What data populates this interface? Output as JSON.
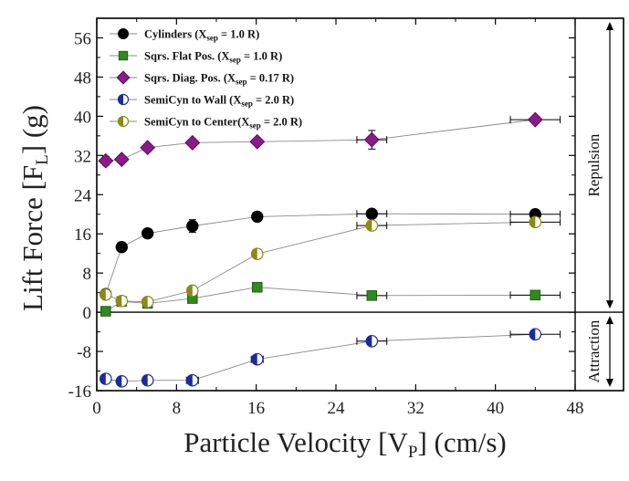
{
  "chart_data": {
    "type": "scatter",
    "xlabel": {
      "main": "Particle Velocity [V",
      "sub": "P",
      "tail": "] (cm/s)"
    },
    "ylabel": {
      "main": "Lift Force [F",
      "sub": "L",
      "tail": "] (g)"
    },
    "xlim": [
      0,
      48
    ],
    "ylim": [
      -16,
      60
    ],
    "x_ticks": [
      0,
      8,
      16,
      24,
      32,
      40,
      48
    ],
    "x_tick_labels": [
      "0",
      "8",
      "16",
      "24",
      "32",
      "40",
      "48"
    ],
    "y_ticks": [
      -16,
      -8,
      0,
      8,
      16,
      24,
      32,
      40,
      48,
      56
    ],
    "y_tick_labels": [
      "-16",
      "-8",
      "0",
      "8",
      "16",
      "24",
      "32",
      "40",
      "48",
      "56"
    ],
    "zero_line": 0,
    "grid": false,
    "legend_position": "top-left",
    "regions": [
      {
        "label": "Repulsion",
        "from": 0,
        "to": 60
      },
      {
        "label": "Attraction",
        "from": -16,
        "to": 0
      }
    ],
    "series": [
      {
        "name": "Cylinders (X",
        "name_sub": "sep",
        "name_tail": " = 1.0 R)",
        "marker": "circle-filled",
        "color": "#000000",
        "x": [
          0.9,
          2.5,
          5.1,
          9.6,
          16.1,
          27.6,
          44.0
        ],
        "y": [
          3.7,
          13.3,
          16.1,
          17.6,
          19.5,
          20.1,
          20.0
        ],
        "y_err": [
          0,
          0.6,
          0,
          1.3,
          0.5,
          0,
          0
        ],
        "x_err": [
          0,
          0,
          0,
          0,
          0,
          1.5,
          2.5
        ]
      },
      {
        "name": "Sqrs. Flat Pos. (X",
        "name_sub": "sep",
        "name_tail": " = 1.0 R)",
        "marker": "square",
        "color": "#2e8b1e",
        "x": [
          0.9,
          2.5,
          5.1,
          9.6,
          16.1,
          27.6,
          44.0
        ],
        "y": [
          0.2,
          2.2,
          1.8,
          2.8,
          5.1,
          3.4,
          3.5
        ],
        "y_err": [
          0,
          0,
          0,
          0,
          0.3,
          0,
          0
        ],
        "x_err": [
          0,
          0,
          0,
          0,
          0,
          1.5,
          2.5
        ]
      },
      {
        "name": "Sqrs. Diag. Pos. (X",
        "name_sub": "sep",
        "name_tail": " = 0.17 R)",
        "marker": "diamond",
        "color": "#8b1a8b",
        "x": [
          0.9,
          2.5,
          5.1,
          9.6,
          16.1,
          27.6,
          44.0
        ],
        "y": [
          30.9,
          31.2,
          33.6,
          34.6,
          34.8,
          35.2,
          39.3
        ],
        "y_err": [
          0.9,
          0,
          0,
          0,
          0,
          1.9,
          0
        ],
        "x_err": [
          0,
          0,
          0,
          0,
          0,
          1.5,
          2.5
        ]
      },
      {
        "name": "SemiCyn to Wall (X",
        "name_sub": "sep",
        "name_tail": " = 2.0 R)",
        "marker": "circle-half-left",
        "color": "#1c2a9c",
        "x": [
          0.9,
          2.5,
          5.1,
          9.6,
          16.1,
          27.6,
          44.0
        ],
        "y": [
          -13.6,
          -14.1,
          -13.9,
          -13.9,
          -9.6,
          -5.9,
          -4.5
        ],
        "y_err": [
          0,
          0,
          0,
          0,
          0,
          0,
          0
        ],
        "x_err": [
          0,
          0,
          0,
          0.6,
          0.6,
          1.5,
          2.5
        ]
      },
      {
        "name": "SemiCyn to Center(X",
        "name_sub": "sep",
        "name_tail": " = 2.0 R)",
        "marker": "circle-half-left",
        "color": "#8a8a16",
        "x": [
          0.9,
          2.5,
          5.1,
          9.6,
          16.1,
          27.6,
          44.0
        ],
        "y": [
          3.6,
          2.3,
          2.1,
          4.4,
          11.9,
          17.7,
          18.4
        ],
        "y_err": [
          0,
          0,
          0,
          0.6,
          0.7,
          0,
          0
        ],
        "x_err": [
          0,
          0,
          0,
          0,
          0,
          1.5,
          2.5
        ]
      }
    ]
  }
}
